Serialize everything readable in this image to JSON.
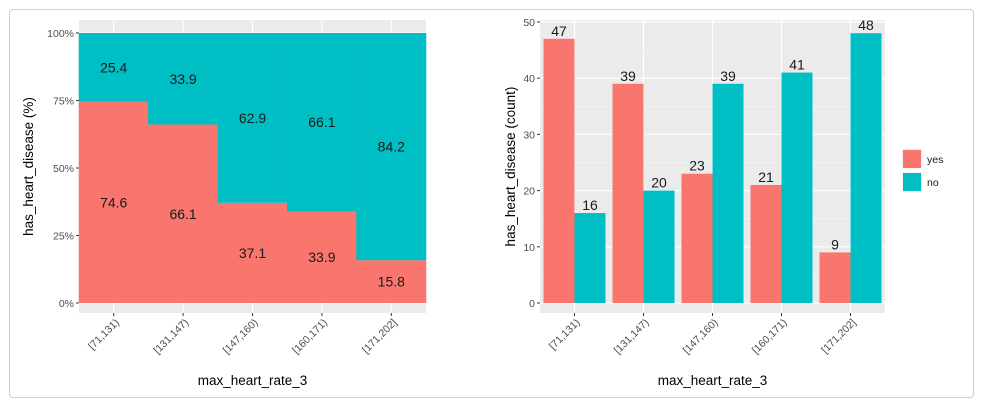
{
  "chart_data": [
    {
      "type": "bar",
      "stacked": true,
      "position": "fill",
      "title": "",
      "xlabel": "max_heart_rate_3",
      "ylabel": "has_heart_disease  (%)",
      "ylim": [
        0,
        100
      ],
      "yticks": [
        "0%",
        "25%",
        "50%",
        "75%",
        "100%"
      ],
      "ytick_values": [
        0,
        25,
        50,
        75,
        100
      ],
      "categories": [
        "[71,131)",
        "[131,147)",
        "[147,160)",
        "[160,171)",
        "[171,202]"
      ],
      "series": [
        {
          "name": "yes",
          "color": "#F8766D",
          "values": [
            74.6,
            66.1,
            37.1,
            33.9,
            15.8
          ]
        },
        {
          "name": "no",
          "color": "#00BFC4",
          "values": [
            25.4,
            33.9,
            62.9,
            66.1,
            84.2
          ]
        }
      ],
      "data_labels": [
        {
          "yes": "74.6",
          "no": "25.4"
        },
        {
          "yes": "66.1",
          "no": "33.9"
        },
        {
          "yes": "37.1",
          "no": "62.9"
        },
        {
          "yes": "33.9",
          "no": "66.1"
        },
        {
          "yes": "15.8",
          "no": "84.2"
        }
      ]
    },
    {
      "type": "bar",
      "stacked": false,
      "position": "dodge",
      "title": "",
      "xlabel": "max_heart_rate_3",
      "ylabel": "has_heart_disease  (count)",
      "ylim": [
        0,
        50.35
      ],
      "yticks": [
        "0",
        "10",
        "20",
        "30",
        "40",
        "50"
      ],
      "ytick_values": [
        0,
        10,
        20,
        30,
        40,
        50
      ],
      "categories": [
        "[71,131)",
        "[131,147)",
        "[147,160)",
        "[160,171)",
        "[171,202]"
      ],
      "series": [
        {
          "name": "yes",
          "color": "#F8766D",
          "values": [
            47,
            39,
            23,
            21,
            9
          ]
        },
        {
          "name": "no",
          "color": "#00BFC4",
          "values": [
            16,
            20,
            39,
            41,
            48
          ]
        }
      ],
      "data_labels": [
        {
          "yes": "47",
          "no": "16"
        },
        {
          "yes": "39",
          "no": "20"
        },
        {
          "yes": "23",
          "no": "39"
        },
        {
          "yes": "21",
          "no": "41"
        },
        {
          "yes": "9",
          "no": "48"
        }
      ],
      "legend": {
        "position": "right",
        "entries": [
          "yes",
          "no"
        ]
      }
    }
  ]
}
